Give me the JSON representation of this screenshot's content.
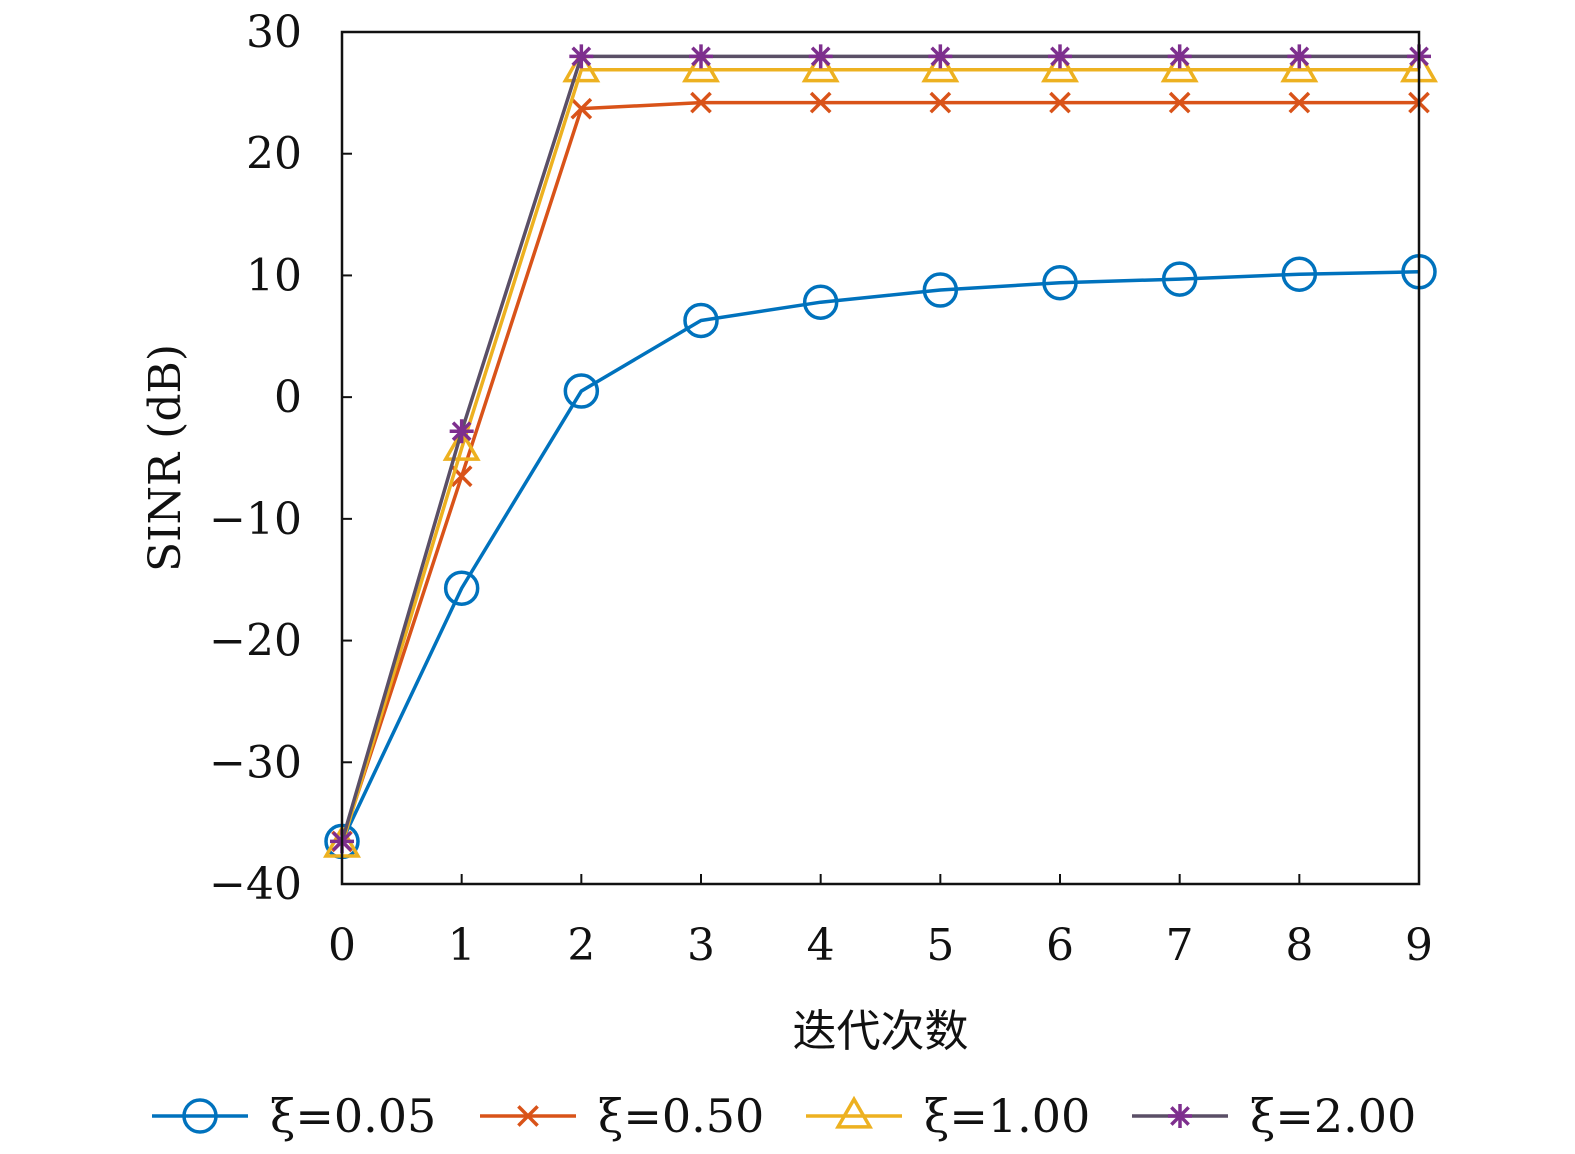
{
  "chart_data": {
    "type": "line",
    "title": "",
    "xlabel": "迭代次数",
    "ylabel": "SINR (dB)",
    "x": [
      0,
      1,
      2,
      3,
      4,
      5,
      6,
      7,
      8,
      9
    ],
    "xlim": [
      0,
      9
    ],
    "ylim": [
      -40,
      30
    ],
    "xticks": [
      "0",
      "1",
      "2",
      "3",
      "4",
      "5",
      "6",
      "7",
      "8",
      "9"
    ],
    "yticks": [
      "−40",
      "−30",
      "−20",
      "−10",
      "0",
      "10",
      "20",
      "30"
    ],
    "grid": false,
    "legend_position": "bottom",
    "series": [
      {
        "name": "ξ=0.05",
        "color": "#0072BD",
        "marker": "circle",
        "values": [
          -36.5,
          -15.7,
          0.5,
          6.3,
          7.8,
          8.8,
          9.4,
          9.7,
          10.1,
          10.3
        ]
      },
      {
        "name": "ξ=0.50",
        "color": "#D95319",
        "marker": "x",
        "values": [
          -36.5,
          -6.5,
          23.7,
          24.2,
          24.2,
          24.2,
          24.2,
          24.2,
          24.2,
          24.2
        ]
      },
      {
        "name": "ξ=1.00",
        "color": "#EDB120",
        "marker": "triangle",
        "values": [
          -36.8,
          -4.2,
          26.9,
          26.9,
          26.9,
          26.9,
          26.9,
          26.9,
          26.9,
          26.9
        ]
      },
      {
        "name": "ξ=2.00",
        "color": "#7E2F8E",
        "line_color": "#5A4F66",
        "marker": "asterisk",
        "values": [
          -36.5,
          -2.8,
          28.0,
          28.0,
          28.0,
          28.0,
          28.0,
          28.0,
          28.0,
          28.0
        ]
      }
    ]
  }
}
